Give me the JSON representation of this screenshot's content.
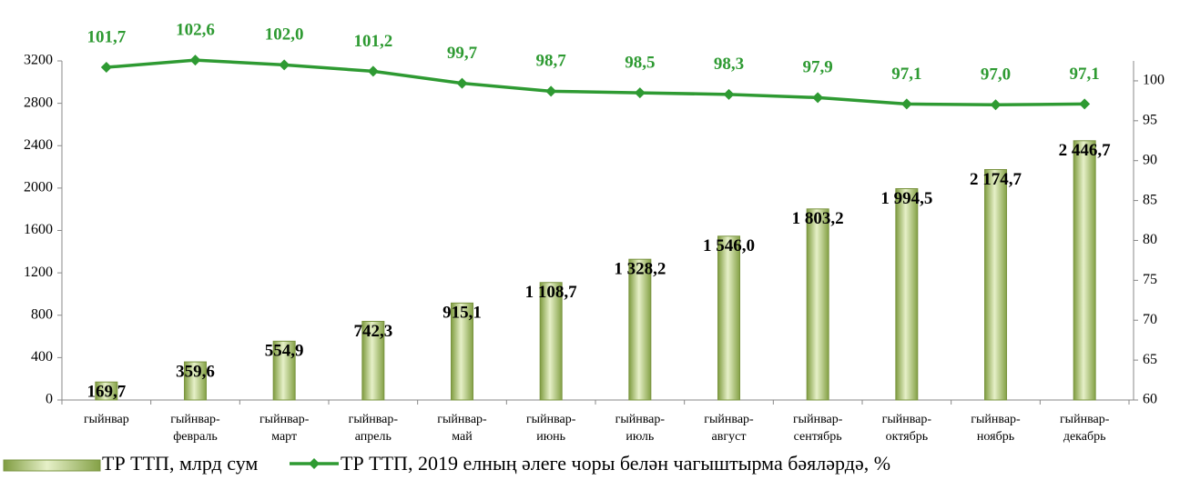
{
  "chart_data": {
    "type": "bar_line",
    "categories": [
      "гыйнвар",
      "гыйнвар-\nфевраль",
      "гыйнвар-\nмарт",
      "гыйнвар-\nапрель",
      "гыйнвар-\nмай",
      "гыйнвар-\nиюнь",
      "гыйнвар-\nиюль",
      "гыйнвар-\nавгуст",
      "гыйнвар-\nсентябрь",
      "гыйнвар-\nоктябрь",
      "гыйнвар-\nноябрь",
      "гыйнвар-\nдекабрь"
    ],
    "series": [
      {
        "name": "ТР ТТП, млрд сум",
        "type": "bar",
        "color": "#9bbb59",
        "values": [
          169.7,
          359.6,
          554.9,
          742.3,
          915.1,
          1108.7,
          1328.2,
          1546.0,
          1803.2,
          1994.5,
          2174.7,
          2446.7
        ],
        "value_labels": [
          "169,7",
          "359,6",
          "554,9",
          "742,3",
          "915,1",
          "1 108,7",
          "1 328,2",
          "1 546,0",
          "1 803,2",
          "1 994,5",
          "2 174,7",
          "2 446,7"
        ]
      },
      {
        "name": "ТР ТТП, 2019 елның әлеге чоры белән чагыштырма бәяләрдә, %",
        "type": "line",
        "axis": "y2",
        "color": "#2e9a32",
        "values": [
          101.7,
          102.6,
          102.0,
          101.2,
          99.7,
          98.7,
          98.5,
          98.3,
          97.9,
          97.1,
          97.0,
          97.1
        ],
        "value_labels": [
          "101,7",
          "102,6",
          "102,0",
          "101,2",
          "99,7",
          "98,7",
          "98,5",
          "98,3",
          "97,9",
          "97,1",
          "97,0",
          "97,1"
        ]
      }
    ],
    "ylim": [
      0,
      3200
    ],
    "yticks": [
      0,
      400,
      800,
      1200,
      1600,
      2000,
      2400,
      2800,
      3200
    ],
    "y2lim": [
      60,
      102.5
    ],
    "y2ticks": [
      60,
      65,
      70,
      75,
      80,
      85,
      90,
      95,
      100
    ],
    "legend": "bottom"
  }
}
